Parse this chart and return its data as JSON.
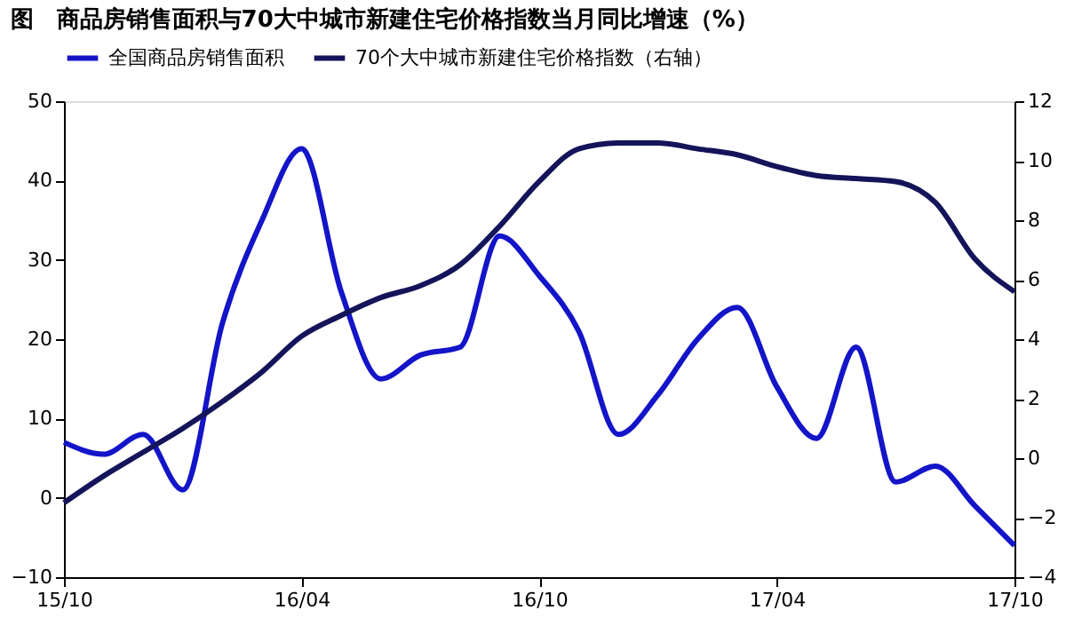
{
  "chart_data": {
    "type": "line",
    "title": "图　商品房销售面积与70大中城市新建住宅价格指数当月同比增速（%）",
    "categories": [
      "15/10",
      null,
      null,
      null,
      null,
      null,
      "16/04",
      null,
      null,
      null,
      null,
      null,
      "16/10",
      null,
      null,
      null,
      null,
      null,
      "17/04",
      null,
      null,
      null,
      null,
      null,
      "17/10"
    ],
    "series": [
      {
        "name": "全国商品房销售面积",
        "color": "#1414c8",
        "axis": "y",
        "values": [
          7,
          5.5,
          8,
          1,
          22,
          35,
          44,
          26,
          15,
          18,
          19,
          33,
          28,
          21,
          8,
          13,
          20,
          24,
          14,
          7.5,
          19,
          2,
          4,
          -1,
          -6
        ]
      },
      {
        "name": "70个大中城市新建住宅价格指数（右轴）",
        "color": "#14145a",
        "axis": "y2",
        "values": [
          -1.5,
          -0.6,
          0.2,
          1.0,
          1.9,
          2.9,
          4.1,
          4.8,
          5.4,
          5.8,
          6.5,
          7.8,
          9.3,
          10.4,
          10.6,
          10.6,
          10.4,
          10.2,
          9.8,
          9.5,
          9.4,
          9.3,
          8.6,
          6.7,
          5.6
        ]
      }
    ],
    "ylim": [
      -10,
      50
    ],
    "yticks": [
      -10,
      0,
      10,
      20,
      30,
      40,
      50
    ],
    "y2lim": [
      -4,
      12
    ],
    "y2ticks": [
      -4,
      -2,
      0,
      2,
      4,
      6,
      8,
      10,
      12
    ],
    "grid": false,
    "legend": "top",
    "marker": "none",
    "line_style": "solid"
  }
}
